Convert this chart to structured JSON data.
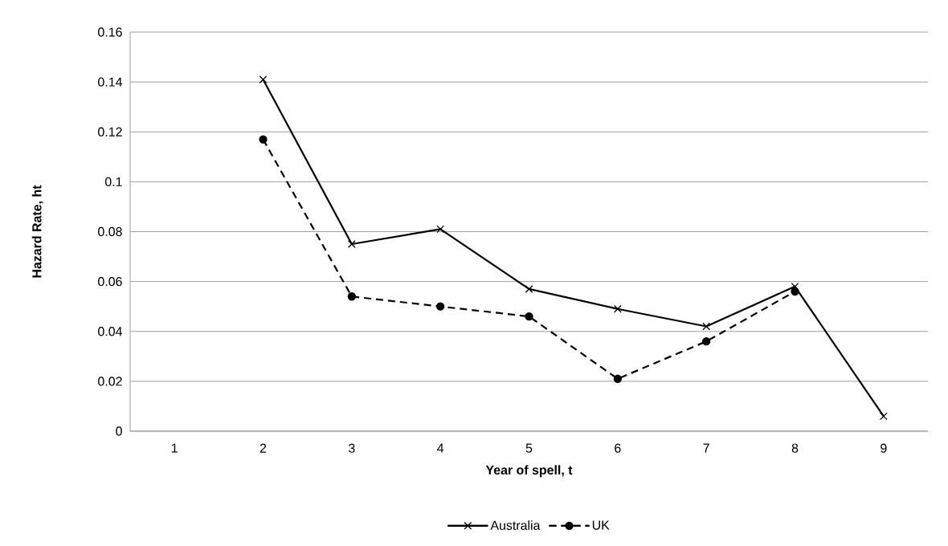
{
  "chart_data": {
    "type": "line",
    "xlabel": "Year of spell, t",
    "ylabel": "Hazard Rate, ht",
    "categories": [
      "1",
      "2",
      "3",
      "4",
      "5",
      "6",
      "7",
      "8",
      "9"
    ],
    "series": [
      {
        "name": "Australia",
        "color": "#000000",
        "marker": "cross",
        "line_style": "solid",
        "values": [
          null,
          0.141,
          0.075,
          0.081,
          0.057,
          0.049,
          0.042,
          0.058,
          0.006
        ]
      },
      {
        "name": "UK",
        "color": "#000000",
        "marker": "circle",
        "line_style": "dashed",
        "values": [
          null,
          0.117,
          0.054,
          0.05,
          0.046,
          0.021,
          0.036,
          0.056,
          null
        ]
      }
    ],
    "ylim": [
      0,
      0.16
    ],
    "yticks": [
      0,
      0.02,
      0.04,
      0.06,
      0.08,
      0.1,
      0.12,
      0.14,
      0.16
    ],
    "grid": "y",
    "legend": "bottom"
  }
}
